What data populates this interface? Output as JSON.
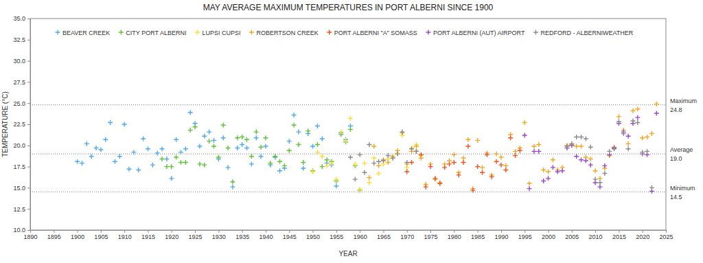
{
  "chart_data": {
    "type": "scatter",
    "title": "MAY AVERAGE MAXIMUM TEMPERATURES IN PORT ALBERNI SINCE 1900",
    "x_label": "YEAR",
    "y_label": "TEMPERATURE (°C)",
    "xlim": [
      1890,
      2025
    ],
    "xticks": [
      1890,
      1895,
      1900,
      1905,
      1910,
      1915,
      1920,
      1925,
      1930,
      1935,
      1940,
      1945,
      1950,
      1955,
      1960,
      1965,
      1970,
      1975,
      1980,
      1985,
      1990,
      1995,
      2000,
      2005,
      2010,
      2015,
      2020,
      2025
    ],
    "ylim": [
      10,
      35
    ],
    "yticks": [
      {
        "value": 10,
        "label": "10.0"
      },
      {
        "value": 12.5,
        "label": "12.5"
      },
      {
        "value": 15,
        "label": "15.0"
      },
      {
        "value": 17.5,
        "label": "17.5"
      },
      {
        "value": 20,
        "label": "20.0"
      },
      {
        "value": 22.5,
        "label": "22.5"
      },
      {
        "value": 25,
        "label": "25.0"
      },
      {
        "value": 27.5,
        "label": "27.5"
      },
      {
        "value": 30,
        "label": "30.0"
      },
      {
        "value": 32.5,
        "label": "32.5"
      },
      {
        "value": 35,
        "label": "35.0"
      }
    ],
    "grid": false,
    "legend": "top",
    "marker": "plus",
    "reference_lines": [
      {
        "name": "Maximum",
        "value": 24.8,
        "label": "24.8"
      },
      {
        "name": "Average",
        "value": 19.0,
        "label": "19.0"
      },
      {
        "name": "Minimum",
        "value": 14.5,
        "label": "14.5"
      }
    ],
    "series": [
      {
        "name": "BEAVER CREEK",
        "color": "#4fa8f2",
        "x": [
          1900,
          1901,
          1902,
          1903,
          1904,
          1905,
          1906,
          1907,
          1908,
          1909,
          1910,
          1911,
          1912,
          1913,
          1914,
          1915,
          1916,
          1917,
          1918,
          1919,
          1920,
          1921,
          1922,
          1923,
          1924,
          1925,
          1926,
          1927,
          1928,
          1929,
          1930,
          1931,
          1932,
          1933,
          1934,
          1935,
          1936,
          1937,
          1938,
          1939,
          1940,
          1941,
          1942,
          1943,
          1944,
          1945,
          1946,
          1947,
          1948,
          1949,
          1950,
          1951,
          1952,
          1953,
          1954,
          1955,
          1956,
          1957,
          1958
        ],
        "values": [
          18.1,
          17.9,
          20.2,
          18.7,
          19.7,
          19.5,
          20.7,
          22.7,
          18.1,
          18.7,
          22.5,
          17.2,
          19.2,
          17.1,
          20.8,
          19.6,
          17.7,
          19.1,
          19.6,
          18.4,
          16.1,
          20.7,
          19.2,
          19.6,
          23.9,
          22.6,
          19.9,
          21.1,
          21.6,
          20.6,
          18.4,
          20.9,
          17.4,
          15.1,
          19.7,
          20.1,
          19.7,
          17.8,
          20.9,
          18.7,
          19.9,
          17.7,
          18.6,
          17.0,
          17.3,
          20.5,
          23.6,
          21.6,
          17.3,
          21.4,
          19.9,
          22.3,
          20.8,
          17.9,
          17.7,
          15.2,
          21.5,
          20.7,
          22.3
        ]
      },
      {
        "name": "CITY PORT ALBERNI",
        "color": "#5fc136",
        "x": [
          1918,
          1919,
          1920,
          1921,
          1922,
          1923,
          1924,
          1925,
          1926,
          1927,
          1928,
          1929,
          1930,
          1931,
          1932,
          1933,
          1934,
          1935,
          1936,
          1937,
          1938,
          1939,
          1940,
          1941,
          1942,
          1943,
          1944,
          1945,
          1946,
          1947,
          1948,
          1949,
          1950,
          1951,
          1952,
          1953,
          1954,
          1955,
          1956,
          1957,
          1958,
          1959,
          1960
        ],
        "values": [
          18.4,
          17.5,
          17.5,
          18.6,
          18.0,
          18.0,
          21.8,
          22.2,
          17.8,
          17.7,
          20.5,
          19.9,
          18.6,
          22.4,
          19.7,
          15.7,
          20.9,
          21.0,
          20.7,
          18.7,
          21.6,
          19.8,
          20.9,
          17.9,
          18.7,
          18.1,
          17.6,
          19.4,
          22.4,
          20.1,
          18.0,
          21.7,
          17.0,
          20.1,
          17.5,
          18.3,
          18.1,
          15.8,
          21.3,
          20.4,
          21.9,
          17.6,
          14.7
        ]
      },
      {
        "name": "LUPSI CUPSI",
        "color": "#ffdc2e",
        "x": [
          1950,
          1951,
          1952,
          1953,
          1954,
          1955,
          1956,
          1957,
          1958,
          1959,
          1960,
          1961,
          1962,
          1963,
          1964,
          1965,
          1966,
          1967,
          1968,
          1969,
          1970,
          1971,
          1972,
          1973
        ],
        "values": [
          16.9,
          19.2,
          18.7,
          17.6,
          17.9,
          16.0,
          21.6,
          20.6,
          23.2,
          17.8,
          14.8,
          17.9,
          15.6,
          18.5,
          16.7,
          17.8,
          18.4,
          18.5,
          19.1,
          21.2,
          17.4,
          19.7,
          20.1,
          18.8
        ]
      },
      {
        "name": "ROBERTSON CREEK",
        "color": "#f5a623",
        "x": [
          1962,
          1963,
          1964,
          1965,
          1966,
          1967,
          1968,
          1969,
          1970,
          1971,
          1972,
          1973,
          1974,
          1975,
          1976,
          1977,
          1978,
          1979,
          1980,
          1981,
          1982,
          1983,
          1984,
          1985,
          1986,
          1987,
          1988,
          1989,
          1990,
          1991,
          1992,
          1993,
          1994,
          1995,
          1996,
          1997,
          1998,
          1999,
          2000,
          2001,
          2002,
          2003,
          2004,
          2005,
          2006,
          2007,
          2008,
          2009,
          2010,
          2011,
          2012,
          2013,
          2014,
          2015,
          2016,
          2017,
          2018,
          2019,
          2020,
          2021,
          2022,
          2023
        ],
        "values": [
          16.2,
          19.9,
          17.6,
          18.3,
          18.0,
          18.7,
          19.4,
          21.5,
          17.8,
          19.3,
          19.9,
          18.5,
          15.4,
          17.8,
          16.0,
          15.6,
          17.8,
          18.2,
          18.9,
          16.8,
          18.5,
          20.7,
          14.9,
          20.6,
          17.4,
          19.1,
          16.5,
          19.0,
          18.6,
          17.6,
          21.3,
          19.3,
          19.7,
          22.7,
          15.5,
          19.9,
          20.1,
          17.1,
          16.9,
          18.3,
          17.1,
          17.4,
          20.0,
          20.1,
          19.9,
          19.9,
          18.6,
          18.4,
          17.0,
          16.1,
          17.3,
          18.8,
          19.8,
          23.4,
          21.8,
          20.2,
          24.1,
          24.3,
          20.9,
          21.0,
          21.4,
          24.9
        ]
      },
      {
        "name": "PORT ALBERNI \"A\" SOMASS",
        "color": "#f4511e",
        "x": [
          1970,
          1971,
          1972,
          1973,
          1974,
          1975,
          1976,
          1977,
          1978,
          1979,
          1980,
          1981,
          1982,
          1983,
          1984,
          1985,
          1986,
          1987,
          1988,
          1989,
          1990,
          1991,
          1992,
          1993,
          1994
        ],
        "values": [
          16.9,
          18.0,
          19.3,
          18.9,
          15.1,
          17.5,
          16.1,
          15.5,
          17.4,
          17.8,
          18.0,
          16.5,
          18.0,
          19.9,
          14.7,
          17.5,
          16.8,
          18.9,
          16.3,
          18.1,
          17.7,
          17.1,
          20.9,
          18.8,
          19.4
        ]
      },
      {
        "name": "PORT ALBERNI (AUT) AIRPORT",
        "color": "#9a46d4",
        "x": [
          1995,
          1996,
          1997,
          1998,
          1999,
          2000,
          2001,
          2002,
          2003,
          2004,
          2005,
          2006,
          2007,
          2008,
          2009,
          2010,
          2011,
          2012,
          2013,
          2014,
          2015,
          2016,
          2017,
          2018,
          2019,
          2020,
          2021,
          2022,
          2023
        ],
        "values": [
          21.2,
          14.9,
          19.3,
          19.3,
          15.8,
          16.1,
          17.4,
          16.9,
          17.0,
          19.7,
          20.0,
          18.7,
          18.3,
          18.2,
          17.7,
          15.6,
          15.1,
          17.6,
          18.9,
          19.7,
          22.6,
          21.6,
          21.1,
          22.6,
          23.3,
          19.0,
          18.9,
          14.6,
          23.8
        ]
      },
      {
        "name": "REDFORD - ALBERNIWEATHER",
        "color": "#8a8a8a",
        "x": [
          1958,
          1959,
          1960,
          1961,
          1962,
          1963,
          1964,
          1965,
          1966,
          1967,
          1968,
          1969,
          1970,
          1971,
          1972,
          2004,
          2005,
          2006,
          2007,
          2008,
          2009,
          2010,
          2011,
          2012,
          2013,
          2014,
          2015,
          2016,
          2017,
          2018,
          2019,
          2020,
          2021,
          2022
        ],
        "values": [
          18.6,
          16.0,
          18.9,
          16.8,
          20.1,
          17.9,
          18.1,
          18.2,
          18.8,
          18.5,
          19.0,
          21.6,
          18.0,
          19.6,
          19.3,
          19.9,
          20.2,
          21.0,
          21.0,
          20.8,
          19.8,
          16.0,
          15.6,
          16.7,
          19.3,
          19.6,
          22.8,
          21.4,
          19.6,
          22.9,
          22.7,
          19.2,
          19.3,
          15.0
        ]
      }
    ]
  }
}
